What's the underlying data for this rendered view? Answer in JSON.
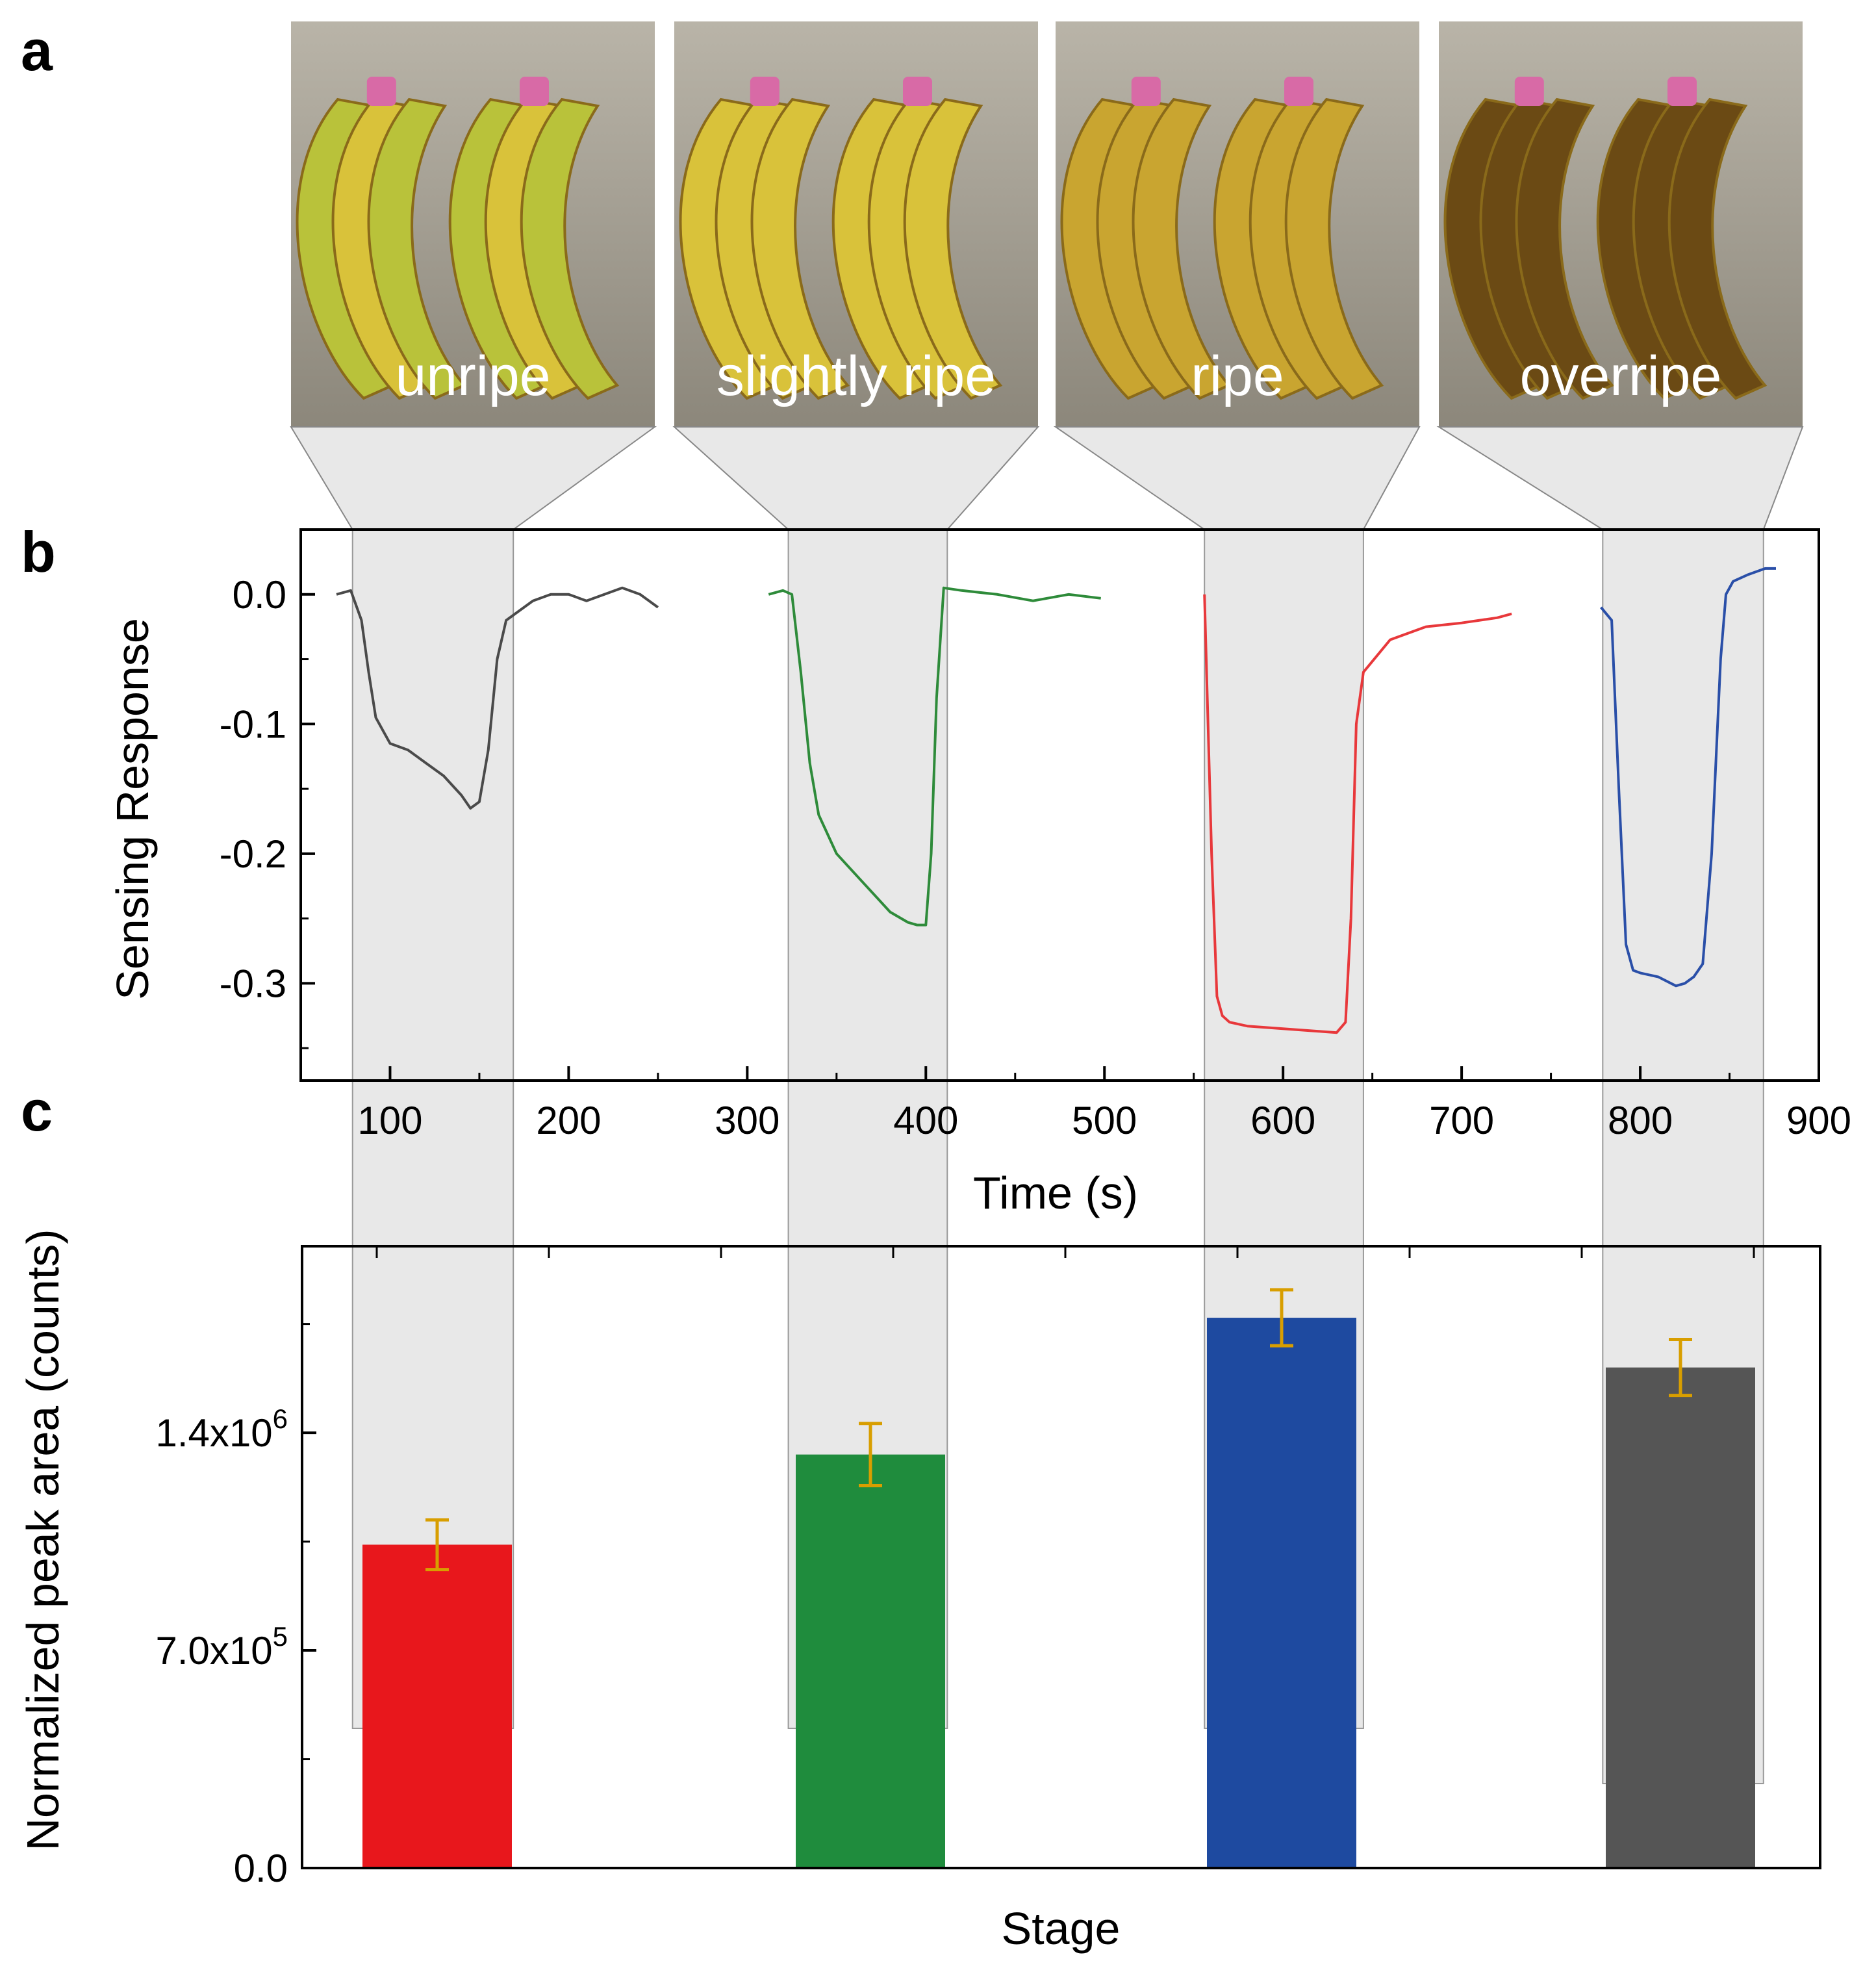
{
  "panels": {
    "a": "a",
    "b": "b",
    "c": "c"
  },
  "stages": [
    "unripe",
    "slightly ripe",
    "ripe",
    "overripe"
  ],
  "colors": {
    "series": [
      "#4a4a4a",
      "#2e8b3a",
      "#e8383b",
      "#2a4fa8"
    ],
    "bars": [
      "#e8171c",
      "#1f8c3d",
      "#1e4aa0",
      "#555555"
    ],
    "error": "#d89e00",
    "band": "#e8e8e8",
    "banana_light": "#d9c23a",
    "banana_dark": "#8a6a1a"
  },
  "chart_data": [
    {
      "type": "line",
      "panel": "b",
      "xlabel": "Time (s)",
      "ylabel": "Sensing Response",
      "xlim": [
        50,
        900
      ],
      "ylim": [
        -0.375,
        0.05
      ],
      "xticks": [
        "100",
        "200",
        "300",
        "400",
        "500",
        "600",
        "700",
        "800",
        "900"
      ],
      "yticks": [
        "0.0",
        "-0.1",
        "-0.2",
        "-0.3"
      ],
      "highlight_bands": [
        [
          79,
          169
        ],
        [
          323,
          412
        ],
        [
          556,
          645
        ],
        [
          779,
          869
        ]
      ],
      "series": [
        {
          "name": "unripe",
          "x": [
            70,
            78,
            84,
            88,
            92,
            96,
            100,
            110,
            120,
            130,
            140,
            145,
            150,
            155,
            160,
            165,
            170,
            180,
            190,
            200,
            210,
            220,
            230,
            240,
            250
          ],
          "y": [
            0.0,
            0.003,
            -0.02,
            -0.06,
            -0.095,
            -0.105,
            -0.115,
            -0.12,
            -0.13,
            -0.14,
            -0.155,
            -0.165,
            -0.16,
            -0.12,
            -0.05,
            -0.02,
            -0.015,
            -0.005,
            0.0,
            0.0,
            -0.005,
            0.0,
            0.005,
            0.0,
            -0.01
          ]
        },
        {
          "name": "slightly ripe",
          "x": [
            312,
            320,
            325,
            330,
            335,
            340,
            350,
            360,
            370,
            380,
            390,
            395,
            400,
            403,
            406,
            410,
            420,
            440,
            460,
            480,
            498
          ],
          "y": [
            0.0,
            0.003,
            0.0,
            -0.06,
            -0.13,
            -0.17,
            -0.2,
            -0.215,
            -0.23,
            -0.245,
            -0.253,
            -0.255,
            -0.255,
            -0.2,
            -0.08,
            0.005,
            0.003,
            0.0,
            -0.005,
            0.0,
            -0.003
          ]
        },
        {
          "name": "ripe",
          "x": [
            556,
            560,
            563,
            566,
            570,
            580,
            590,
            600,
            610,
            620,
            630,
            635,
            638,
            641,
            645,
            660,
            680,
            700,
            720,
            728
          ],
          "y": [
            0.0,
            -0.2,
            -0.31,
            -0.325,
            -0.33,
            -0.333,
            -0.334,
            -0.335,
            -0.336,
            -0.337,
            -0.338,
            -0.33,
            -0.25,
            -0.1,
            -0.06,
            -0.035,
            -0.025,
            -0.022,
            -0.018,
            -0.015
          ]
        },
        {
          "name": "overripe",
          "x": [
            778,
            784,
            788,
            792,
            796,
            800,
            810,
            820,
            825,
            830,
            835,
            840,
            845,
            848,
            852,
            860,
            870,
            876
          ],
          "y": [
            -0.01,
            -0.02,
            -0.15,
            -0.27,
            -0.29,
            -0.292,
            -0.295,
            -0.302,
            -0.3,
            -0.295,
            -0.285,
            -0.2,
            -0.05,
            0.0,
            0.01,
            0.015,
            0.02,
            0.02
          ]
        }
      ]
    },
    {
      "type": "bar",
      "panel": "c",
      "xlabel": "Stage",
      "ylabel": "Normalized peak area (counts)",
      "ylim": [
        0,
        2000000
      ],
      "categories": [
        "unripe",
        "slightly ripe",
        "ripe",
        "overripe"
      ],
      "values": [
        1040000,
        1330000,
        1770000,
        1610000
      ],
      "errors": [
        80000,
        100000,
        90000,
        90000
      ],
      "ytick_labels": [
        {
          "base": "0.0",
          "exp": ""
        },
        {
          "base": "7.0x10",
          "exp": "5"
        },
        {
          "base": "1.4x10",
          "exp": "6"
        }
      ]
    }
  ]
}
